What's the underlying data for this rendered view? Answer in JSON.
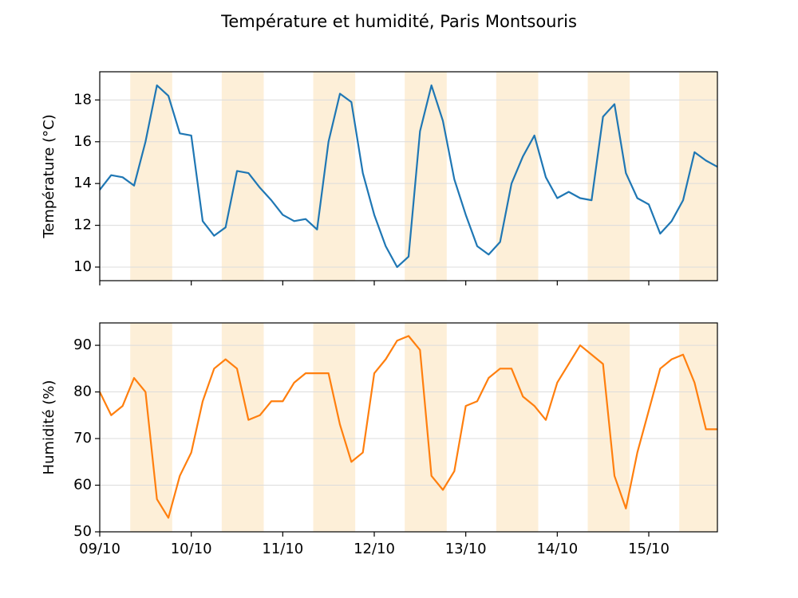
{
  "title": "Température et humidité, Paris Montsouris",
  "chart_data": [
    {
      "type": "line",
      "ylabel": "Température (°C)",
      "x": [
        0,
        0.125,
        0.25,
        0.375,
        0.5,
        0.625,
        0.75,
        0.875,
        1,
        1.125,
        1.25,
        1.375,
        1.5,
        1.625,
        1.75,
        1.875,
        2,
        2.125,
        2.25,
        2.375,
        2.5,
        2.625,
        2.75,
        2.875,
        3,
        3.125,
        3.25,
        3.375,
        3.5,
        3.625,
        3.75,
        3.875,
        4,
        4.125,
        4.25,
        4.375,
        4.5,
        4.625,
        4.75,
        4.875,
        5,
        5.125,
        5.25,
        5.375,
        5.5,
        5.625,
        5.75,
        5.875,
        6,
        6.125,
        6.25,
        6.375,
        6.5,
        6.625,
        6.75
      ],
      "series": [
        {
          "color": "#1f77b4",
          "values": [
            13.7,
            14.4,
            14.3,
            13.9,
            16.0,
            18.7,
            18.2,
            16.4,
            16.3,
            12.2,
            11.5,
            11.9,
            14.6,
            14.5,
            13.8,
            13.2,
            12.5,
            12.2,
            12.3,
            11.8,
            16.0,
            18.3,
            17.9,
            14.5,
            12.5,
            11.0,
            10.0,
            10.5,
            16.5,
            18.7,
            17.0,
            14.2,
            12.5,
            11.0,
            10.6,
            11.2,
            14.0,
            15.3,
            16.3,
            14.3,
            13.3,
            13.6,
            13.3,
            13.2,
            17.2,
            17.8,
            14.5,
            13.3,
            13.0,
            11.6,
            12.2,
            13.2,
            15.5,
            15.1,
            14.8
          ]
        }
      ],
      "xlim": [
        0,
        6.75
      ],
      "xticks": [
        0,
        1,
        2,
        3,
        4,
        5,
        6
      ],
      "ylim": [
        9.35,
        19.35
      ],
      "yticks": [
        10,
        12,
        14,
        16,
        18
      ],
      "grid": true,
      "shaded_spans": [
        [
          0.333,
          0.792
        ],
        [
          1.333,
          1.792
        ],
        [
          2.333,
          2.792
        ],
        [
          3.333,
          3.792
        ],
        [
          4.333,
          4.792
        ],
        [
          5.333,
          5.792
        ],
        [
          6.333,
          6.792
        ]
      ],
      "shade_color": "#fdefd8"
    },
    {
      "type": "line",
      "ylabel": "Humidité (%)",
      "x": [
        0,
        0.125,
        0.25,
        0.375,
        0.5,
        0.625,
        0.75,
        0.875,
        1,
        1.125,
        1.25,
        1.375,
        1.5,
        1.625,
        1.75,
        1.875,
        2,
        2.125,
        2.25,
        2.375,
        2.5,
        2.625,
        2.75,
        2.875,
        3,
        3.125,
        3.25,
        3.375,
        3.5,
        3.625,
        3.75,
        3.875,
        4,
        4.125,
        4.25,
        4.375,
        4.5,
        4.625,
        4.75,
        4.875,
        5,
        5.125,
        5.25,
        5.375,
        5.5,
        5.625,
        5.75,
        5.875,
        6,
        6.125,
        6.25,
        6.375,
        6.5,
        6.625,
        6.75
      ],
      "series": [
        {
          "color": "#ff7f0e",
          "values": [
            80,
            75,
            77,
            83,
            80,
            57,
            53,
            62,
            67,
            78,
            85,
            87,
            85,
            74,
            75,
            78,
            78,
            82,
            84,
            84,
            84,
            73,
            65,
            67,
            84,
            87,
            91,
            92,
            89,
            62,
            59,
            63,
            77,
            78,
            83,
            85,
            85,
            79,
            77,
            74,
            82,
            86,
            90,
            88,
            86,
            62,
            55,
            67,
            76,
            85,
            87,
            88,
            82,
            72,
            72
          ]
        }
      ],
      "xlim": [
        0,
        6.75
      ],
      "xticks": [
        {
          "value": 0,
          "label": "09/10"
        },
        {
          "value": 1,
          "label": "10/10"
        },
        {
          "value": 2,
          "label": "11/10"
        },
        {
          "value": 3,
          "label": "12/10"
        },
        {
          "value": 4,
          "label": "13/10"
        },
        {
          "value": 5,
          "label": "14/10"
        },
        {
          "value": 6,
          "label": "15/10"
        }
      ],
      "ylim": [
        50,
        94.8
      ],
      "yticks": [
        50,
        60,
        70,
        80,
        90
      ],
      "grid": true,
      "shaded_spans": [
        [
          0.333,
          0.792
        ],
        [
          1.333,
          1.792
        ],
        [
          2.333,
          2.792
        ],
        [
          3.333,
          3.792
        ],
        [
          4.333,
          4.792
        ],
        [
          5.333,
          5.792
        ],
        [
          6.333,
          6.792
        ]
      ],
      "shade_color": "#fdefd8"
    }
  ]
}
